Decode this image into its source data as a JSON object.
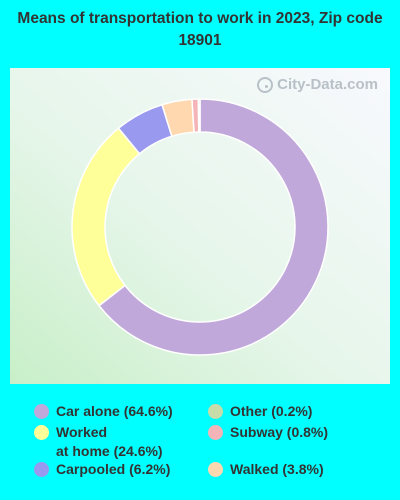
{
  "chart_data": {
    "type": "pie",
    "title": "Means of transportation to work in 2023, Zip code 18901",
    "donut": true,
    "categories": [
      "Car alone",
      "Worked at home",
      "Carpooled",
      "Walked",
      "Subway",
      "Other"
    ],
    "values": [
      64.6,
      24.6,
      6.2,
      3.8,
      0.8,
      0.2
    ],
    "colors": [
      "#c0a8da",
      "#ffff99",
      "#9999f0",
      "#ffd8b0",
      "#f4b4b8",
      "#c8dcaa"
    ],
    "legend": [
      {
        "label": "Car alone (64.6%)",
        "color": "#c0a8da"
      },
      {
        "label": "Other (0.2%)",
        "color": "#c8dcaa"
      },
      {
        "label": "Worked\nat home (24.6%)",
        "color": "#ffff99"
      },
      {
        "label": "Subway (0.8%)",
        "color": "#f4b4b8"
      },
      {
        "label": "Carpooled (6.2%)",
        "color": "#9999f0"
      },
      {
        "label": "Walked (3.8%)",
        "color": "#ffd8b0"
      }
    ],
    "legend_placement": "bottom"
  },
  "watermark": "City-Data.com"
}
